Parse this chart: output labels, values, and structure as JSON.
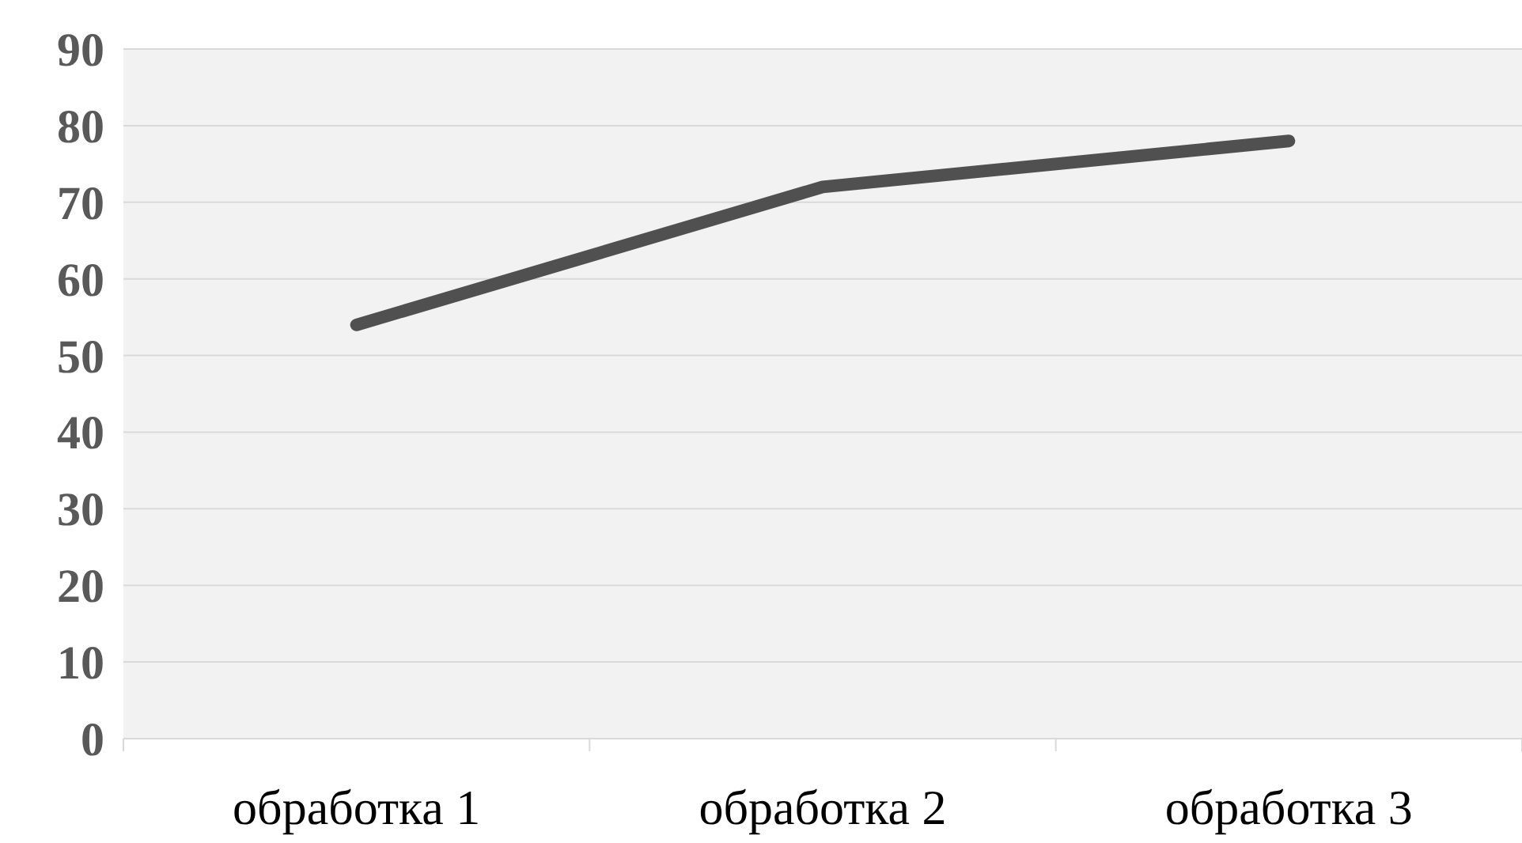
{
  "chart_data": {
    "type": "line",
    "categories": [
      "обработка 1",
      "обработка 2",
      "обработка 3"
    ],
    "values": [
      54,
      72,
      78
    ],
    "color": "#505050",
    "ylim": [
      0,
      90
    ],
    "yticks": [
      0,
      10,
      20,
      30,
      40,
      50,
      60,
      70,
      80,
      90
    ],
    "grid": "y"
  }
}
